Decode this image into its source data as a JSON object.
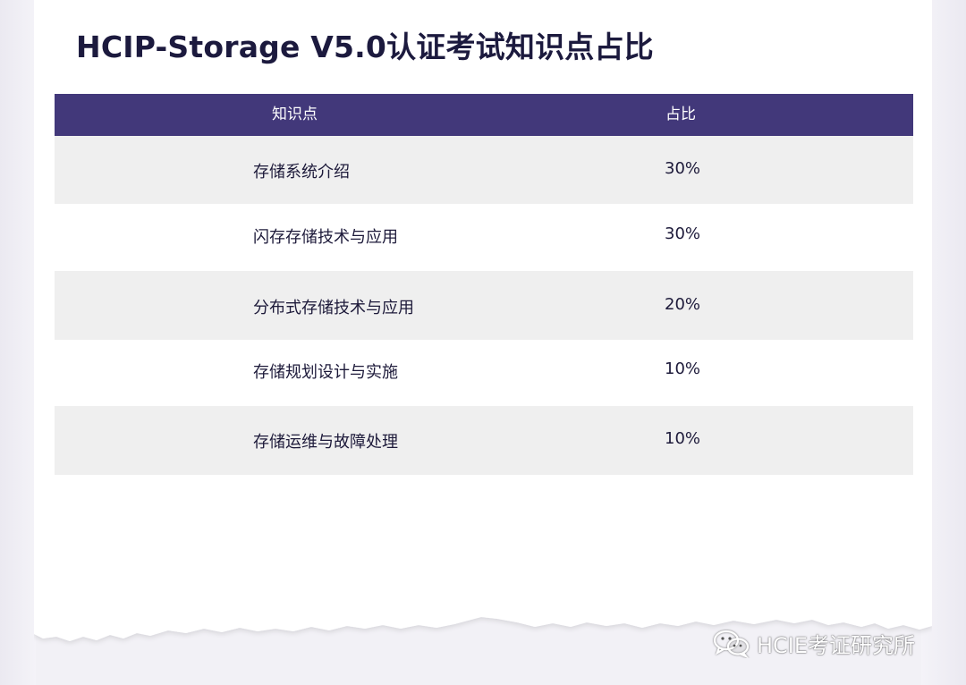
{
  "title": "HCIP-Storage V5.0认证考试知识点占比",
  "table": {
    "headers": [
      "知识点",
      "占比"
    ],
    "rows": [
      {
        "topic": "存储系统介绍",
        "percent": "30%"
      },
      {
        "topic": "闪存存储技术与应用",
        "percent": "30%"
      },
      {
        "topic": "分布式存储技术与应用",
        "percent": "20%"
      },
      {
        "topic": "存储规划设计与实施",
        "percent": "10%"
      },
      {
        "topic": "存储运维与故障处理",
        "percent": "10%"
      }
    ]
  },
  "watermark": {
    "icon": "wechat-icon",
    "text": "HCIE考证研究所"
  },
  "colors": {
    "header_bg": "#42387a",
    "row_shade": "#efefef",
    "title": "#1c1a3e",
    "page_bg": "#f2f1f6"
  }
}
